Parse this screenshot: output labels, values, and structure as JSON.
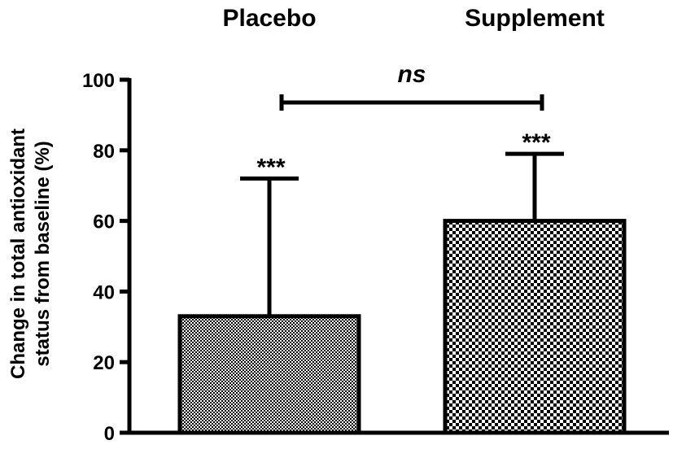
{
  "chart_data": {
    "type": "bar",
    "title": "",
    "categories": [
      "Placebo",
      "Supplement"
    ],
    "values": [
      33,
      60
    ],
    "error_upper": [
      72,
      79
    ],
    "patterns": [
      "fine-checker",
      "coarse-checker"
    ],
    "significance_labels": [
      "***",
      "***"
    ],
    "comparison_label": "ns",
    "comparison_between": [
      "Placebo",
      "Supplement"
    ],
    "xlabel": "",
    "ylabel_lines": [
      "Change in total antioxidant",
      "status from baseline (%)"
    ],
    "ylim": [
      0,
      100
    ],
    "yticks": [
      0,
      20,
      40,
      60,
      80,
      100
    ],
    "category_label_position": "top",
    "grid": false,
    "legend": "none",
    "colors": {
      "ink": "#000000",
      "fill": "#ffffff"
    }
  }
}
